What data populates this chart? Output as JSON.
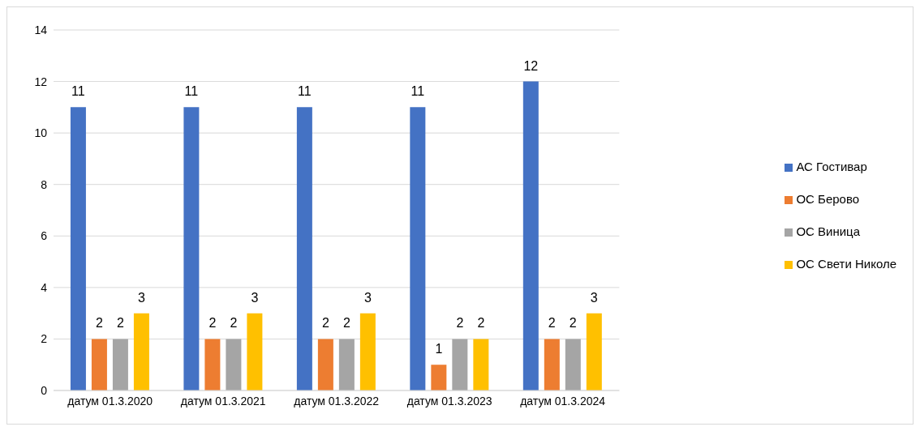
{
  "chart_data": {
    "type": "bar",
    "categories": [
      "датум 01.3.2020",
      "датум 01.3.2021",
      "датум 01.3.2022",
      "датум 01.3.2023",
      "датум 01.3.2024"
    ],
    "series": [
      {
        "name": "АС Гостивар",
        "color": "#4472c4",
        "values": [
          11,
          11,
          11,
          11,
          12
        ]
      },
      {
        "name": "ОС Берово",
        "color": "#ed7d31",
        "values": [
          2,
          2,
          2,
          1,
          2
        ]
      },
      {
        "name": "ОС Виница",
        "color": "#a5a5a5",
        "values": [
          2,
          2,
          2,
          2,
          2
        ]
      },
      {
        "name": "ОС Свети Николе",
        "color": "#ffc000",
        "values": [
          3,
          3,
          3,
          2,
          3
        ]
      }
    ],
    "ylim": [
      0,
      14
    ],
    "yticks": [
      0,
      2,
      4,
      6,
      8,
      10,
      12,
      14
    ],
    "grid": "y",
    "legend": "right",
    "data_labels": true
  }
}
